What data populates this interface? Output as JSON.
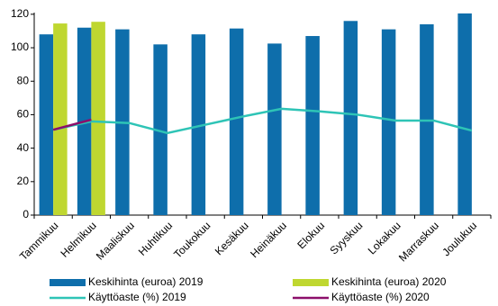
{
  "chart_data": {
    "type": "bar",
    "categories": [
      "Tammikuu",
      "Helmikuu",
      "Maaliskuu",
      "Huhtikuu",
      "Toukokuu",
      "Kesäkuu",
      "Heinäkuu",
      "Elokuu",
      "Syyskuu",
      "Lokakuu",
      "Marraskuu",
      "Joulukuu"
    ],
    "series": [
      {
        "name": "Keskihinta (euroa) 2019",
        "type": "bar",
        "color": "#0e6eab",
        "values": [
          108,
          112,
          111,
          102,
          108,
          111.5,
          102.5,
          107,
          116,
          111,
          114,
          120.5
        ]
      },
      {
        "name": "Keskihinta (euroa) 2020",
        "type": "bar",
        "color": "#bfd730",
        "values": [
          114.5,
          115.5,
          null,
          null,
          null,
          null,
          null,
          null,
          null,
          null,
          null,
          null
        ]
      },
      {
        "name": "Käyttöaste (%) 2019",
        "type": "line",
        "color": "#2ec4b6",
        "values": [
          51,
          56,
          55,
          49,
          54,
          59,
          63.5,
          62,
          60,
          56.5,
          56.5,
          50.5
        ]
      },
      {
        "name": "Käyttöaste (%) 2020",
        "type": "line",
        "color": "#8c0f6b",
        "values": [
          51,
          57,
          null,
          null,
          null,
          null,
          null,
          null,
          null,
          null,
          null,
          null
        ]
      }
    ],
    "ylim": [
      0,
      121
    ],
    "yticks": [
      0,
      20,
      40,
      60,
      80,
      100,
      120
    ],
    "grid": false
  }
}
